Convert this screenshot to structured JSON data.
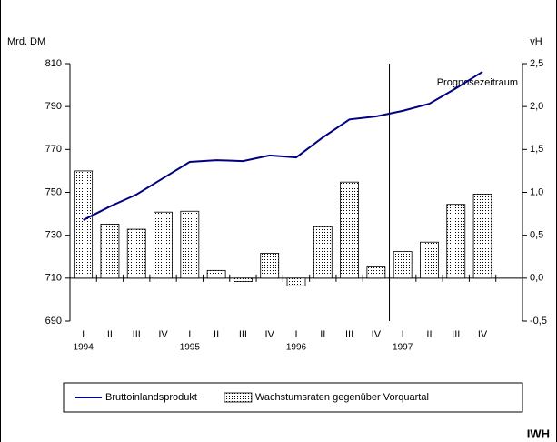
{
  "chart_data": {
    "type": "bar-line",
    "y_label": "Mrd. DM",
    "y2_label": "vH",
    "categories": [
      "I",
      "II",
      "III",
      "IV",
      "I",
      "II",
      "III",
      "IV",
      "I",
      "II",
      "III",
      "IV",
      "I",
      "II",
      "III",
      "IV",
      null
    ],
    "year_labels": [
      "1994",
      null,
      null,
      null,
      "1995",
      null,
      null,
      null,
      "1996",
      null,
      null,
      null,
      "1997",
      null,
      null,
      null,
      null
    ],
    "series": [
      {
        "name": "Bruttoinlandsprodukt",
        "type": "line",
        "color": "#000080",
        "values": [
          737.1,
          743.4,
          749,
          756.6,
          764.2,
          765,
          764.6,
          767.2,
          766.3,
          775.6,
          784,
          785.4,
          788,
          791.3,
          798.5,
          806.2,
          null
        ]
      },
      {
        "name": "Wachstumsraten gegenüber Vorquartal",
        "type": "bar",
        "axis": "y2",
        "color": "#000000",
        "values": [
          1.25,
          0.63,
          0.57,
          0.77,
          0.78,
          0.09,
          -0.04,
          0.29,
          -0.09,
          0.6,
          1.12,
          0.13,
          0.31,
          0.42,
          0.86,
          0.98,
          null
        ]
      }
    ],
    "ylim": [
      690,
      810
    ],
    "yticks": [
      690,
      710,
      730,
      750,
      770,
      790,
      810
    ],
    "y2lim": [
      -0.5,
      2.5
    ],
    "y2ticks": [
      {
        "value": -0.5,
        "label": "-0,5"
      },
      {
        "value": 0,
        "label": "0,0"
      },
      {
        "value": 0.5,
        "label": "0,5"
      },
      {
        "value": 1,
        "label": "1,0"
      },
      {
        "value": 1.5,
        "label": "1,5"
      },
      {
        "value": 2,
        "label": "2,0"
      },
      {
        "value": 2.5,
        "label": "2,5"
      }
    ],
    "forecast_start": 12,
    "forecast_label": "Prognosezeitraum",
    "source": "IWH"
  }
}
